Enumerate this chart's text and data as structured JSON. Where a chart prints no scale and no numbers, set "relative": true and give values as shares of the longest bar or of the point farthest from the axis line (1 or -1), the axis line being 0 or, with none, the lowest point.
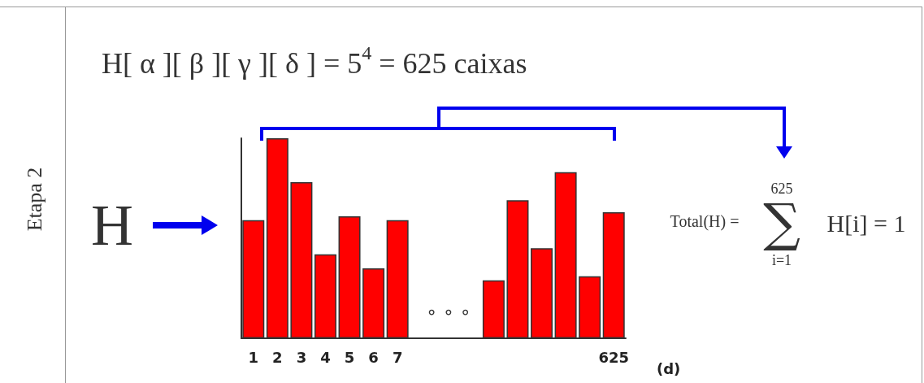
{
  "chart_data": {
    "type": "bar",
    "relative": true,
    "title": "H[ α ][ β ][ γ ][ δ ] = 5$^{4}$ = 625 caixas",
    "xlabel": "(d)",
    "categories": [
      "1",
      "2",
      "3",
      "4",
      "5",
      "6",
      "7",
      null,
      null,
      null,
      null,
      null,
      null,
      null,
      null,
      "625"
    ],
    "values": [
      0.59,
      1,
      0.78,
      0.42,
      0.61,
      0.35,
      0.59,
      null,
      null,
      null,
      0.29,
      0.69,
      0.45,
      0.83,
      0.31,
      0.63
    ],
    "color": "#ff0000",
    "grid": false,
    "annotations": [
      "Etapa 2",
      "H",
      "∘ ∘ ∘",
      "Total(H) =",
      "∑",
      "625",
      "i=1",
      "H[i] = 1"
    ]
  }
}
